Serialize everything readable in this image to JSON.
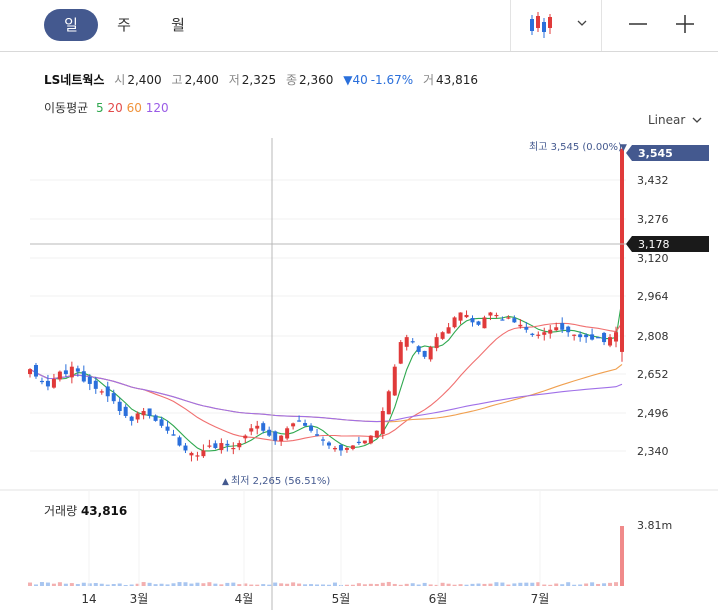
{
  "period_tabs": [
    {
      "label": "일",
      "active": true
    },
    {
      "label": "주",
      "active": false
    },
    {
      "label": "월",
      "active": false
    }
  ],
  "toolbar": {
    "chart_type_icon": "candlestick-icon",
    "dropdown_icon": "chevron-down-icon",
    "zoom_out_icon": "minus-icon",
    "zoom_in_icon": "plus-icon"
  },
  "stock": {
    "name": "LS네트웍스",
    "open_label": "시",
    "open": "2,400",
    "high_label": "고",
    "high": "2,400",
    "low_label": "저",
    "low": "2,325",
    "close_label": "종",
    "close": "2,360",
    "change": "▼40",
    "change_pct": "-1.67%",
    "volume_label": "거",
    "volume": "43,816"
  },
  "moving_average": {
    "label": "이동평균",
    "periods": [
      {
        "value": "5",
        "color": "#2fa84f"
      },
      {
        "value": "20",
        "color": "#e24b4b"
      },
      {
        "value": "60",
        "color": "#f0923a"
      },
      {
        "value": "120",
        "color": "#9a5ce6"
      }
    ]
  },
  "scale_button": {
    "label": "Linear",
    "icon": "chevron-down-icon"
  },
  "annotations": {
    "max_label": "최고 3,545 (0.00%)",
    "min_label": "최저 2,265 (56.51%)"
  },
  "price_badges": {
    "current": "3,545",
    "crosshair": "3,178"
  },
  "colors": {
    "up": "#e03a3a",
    "down": "#2a6fdb",
    "badge_current": "#44598f",
    "badge_crosshair": "#1a1a1a",
    "ma5": "#2fa84f",
    "ma20": "#f07070",
    "ma60": "#f0a050",
    "ma120": "#a070e8"
  },
  "volume": {
    "label": "거래량",
    "value": "43,816",
    "axis_label": "3.81m"
  },
  "chart_data": {
    "type": "candlestick",
    "y_ticks": [
      "3,432",
      "3,276",
      "3,120",
      "2,964",
      "2,808",
      "2,652",
      "2,496",
      "2,340"
    ],
    "x_ticks": [
      "14",
      "3월",
      "4월",
      "5월",
      "6월",
      "7월"
    ],
    "ylim": [
      2200,
      3560
    ],
    "closes": [
      2650,
      2620,
      2600,
      2580,
      2610,
      2640,
      2630,
      2660,
      2640,
      2600,
      2590,
      2570,
      2560,
      2540,
      2520,
      2480,
      2460,
      2440,
      2470,
      2480,
      2460,
      2440,
      2420,
      2400,
      2380,
      2340,
      2320,
      2310,
      2300,
      2320,
      2340,
      2330,
      2350,
      2340,
      2330,
      2350,
      2380,
      2410,
      2420,
      2400,
      2380,
      2360,
      2380,
      2410,
      2430,
      2440,
      2420,
      2400,
      2380,
      2360,
      2340,
      2330,
      2320,
      2330,
      2340,
      2350,
      2360,
      2380,
      2400,
      2480,
      2560,
      2660,
      2760,
      2780,
      2760,
      2720,
      2700,
      2740,
      2780,
      2800,
      2820,
      2860,
      2880,
      2870,
      2840,
      2830,
      2860,
      2880,
      2870,
      2850,
      2860,
      2840,
      2830,
      2810,
      2790,
      2790,
      2800,
      2810,
      2820,
      2810,
      2800,
      2790,
      2780,
      2780,
      2770,
      2780,
      2760,
      2780,
      2800,
      3545
    ]
  }
}
